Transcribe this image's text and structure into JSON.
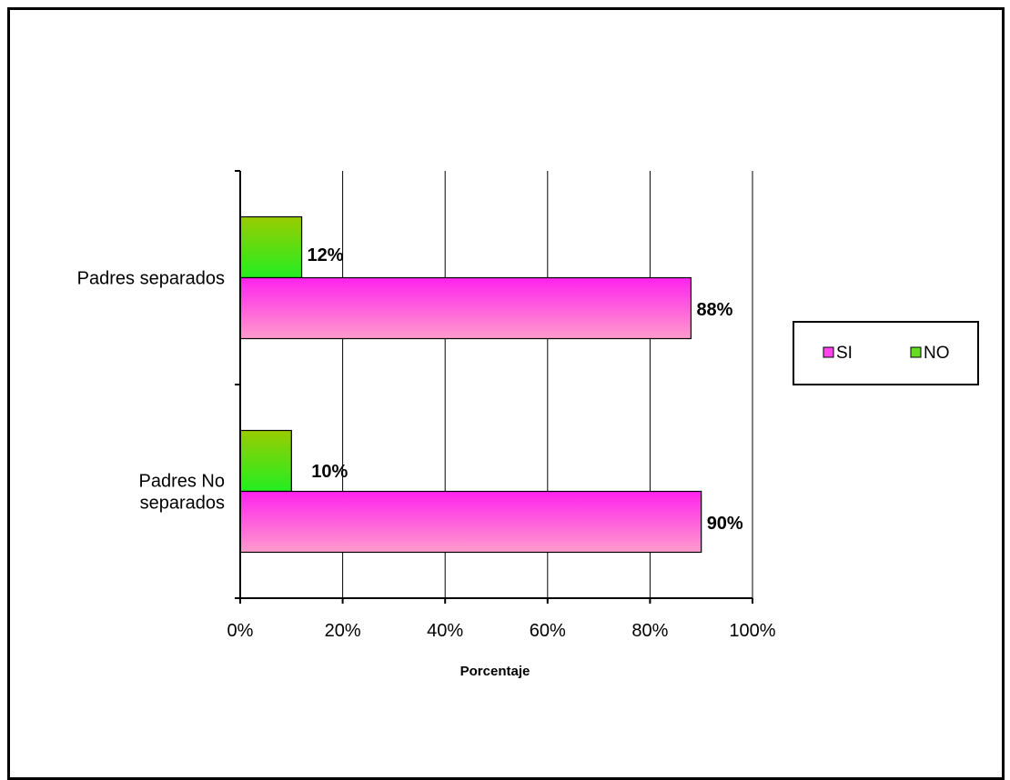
{
  "chart_data": {
    "type": "bar",
    "orientation": "horizontal",
    "categories": [
      "Padres separados",
      "Padres No separados"
    ],
    "category_lines": [
      [
        "Padres separados"
      ],
      [
        "Padres No",
        "separados"
      ]
    ],
    "series": [
      {
        "name": "SI",
        "values": [
          88,
          90
        ],
        "labels": [
          "88%",
          "90%"
        ],
        "color": "#ff44ee"
      },
      {
        "name": "NO",
        "values": [
          12,
          10
        ],
        "labels": [
          "12%",
          "10%"
        ],
        "color": "#66dd22"
      }
    ],
    "xlabel": "Porcentaje",
    "ylabel": "",
    "xlim": [
      0,
      100
    ],
    "ticks": [
      "0%",
      "20%",
      "40%",
      "60%",
      "80%",
      "100%"
    ],
    "grid": "vertical",
    "legend": "right"
  }
}
